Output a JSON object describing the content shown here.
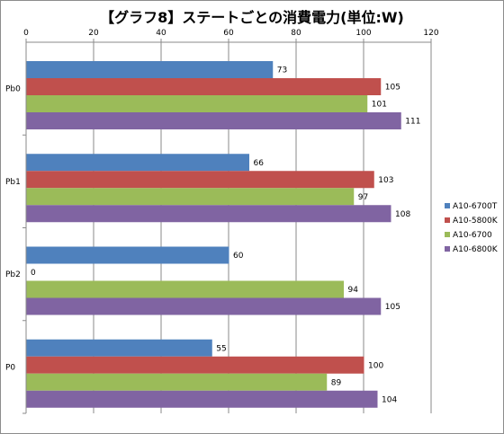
{
  "chart_data": {
    "type": "bar",
    "orientation": "horizontal",
    "title": "【グラフ8】ステートごとの消費電力(単位:W)",
    "categories": [
      "Pb0",
      "Pb1",
      "Pb2",
      "P0"
    ],
    "series": [
      {
        "name": "A10-6700T",
        "color": "#4f81bd",
        "values": [
          73,
          66,
          60,
          55
        ]
      },
      {
        "name": "A10-5800K",
        "color": "#c0504d",
        "values": [
          105,
          103,
          0,
          100
        ]
      },
      {
        "name": "A10-6700",
        "color": "#9bbb59",
        "values": [
          101,
          97,
          94,
          89
        ]
      },
      {
        "name": "A10-6800K",
        "color": "#8064a2",
        "values": [
          111,
          108,
          105,
          104
        ]
      }
    ],
    "xlim": [
      0,
      120
    ],
    "xticks": [
      "0",
      "20",
      "40",
      "60",
      "80",
      "100",
      "120"
    ],
    "grid": true,
    "axis_position": "top",
    "data_labels": true,
    "legend": "right"
  }
}
